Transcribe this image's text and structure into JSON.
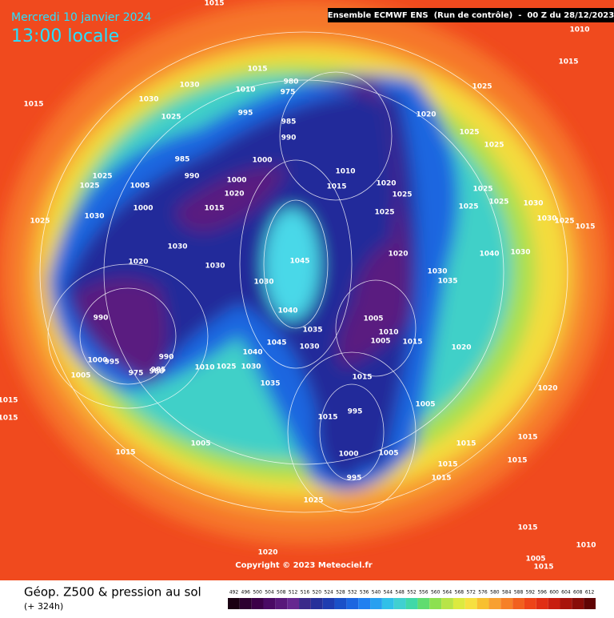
{
  "header": {
    "date": "Mercredi 10 janvier 2024",
    "time": "13:00 locale",
    "run": "Ensemble ECMWF ENS  (Run de contrôle)  -  00 Z du 28/12/2023"
  },
  "map": {
    "pressure_labels": [
      1015,
      1010,
      1015,
      1015,
      1030,
      1010,
      1015,
      1030,
      1025,
      995,
      980,
      975,
      985,
      990,
      1000,
      1025,
      1020,
      1025,
      1025,
      1010,
      1015,
      1020,
      1025,
      1025,
      1025,
      1025,
      1025,
      1030,
      1030,
      1025,
      1015,
      985,
      990,
      1000,
      1005,
      1020,
      1015,
      1000,
      1025,
      1025,
      1025,
      1030,
      1030,
      1030,
      1020,
      1045,
      1030,
      1040,
      1035,
      1030,
      1045,
      1040,
      1025,
      1030,
      1010,
      990,
      1000,
      995,
      990,
      985,
      975,
      980,
      1005,
      1035,
      1020,
      1030,
      1035,
      1040,
      1030,
      1005,
      1010,
      1005,
      1015,
      1020,
      1015,
      1005,
      995,
      1015,
      1000,
      1005,
      995,
      1015,
      1015,
      1015,
      1025,
      1005,
      1015,
      1015,
      1015,
      1020,
      1015,
      1015,
      1020,
      1010,
      1015,
      1005,
      1015
    ]
  },
  "copyright": "Copyright © 2023 Meteociel.fr",
  "footer": {
    "title": "Géop. Z500 & pression au sol",
    "lead": "(+ 324h)",
    "scale": [
      492,
      496,
      500,
      504,
      508,
      512,
      516,
      520,
      524,
      528,
      532,
      536,
      540,
      544,
      548,
      552,
      556,
      560,
      564,
      568,
      572,
      576,
      580,
      584,
      588,
      592,
      596,
      600,
      604,
      608,
      612
    ]
  }
}
